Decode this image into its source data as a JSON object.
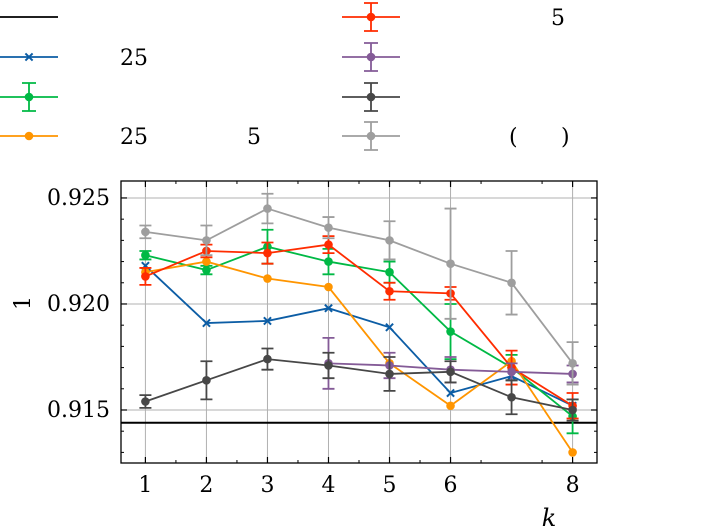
{
  "chart_data": {
    "type": "line",
    "title": "",
    "xlabel": "k",
    "ylabel": "1",
    "xlim": [
      0.6,
      8.4
    ],
    "ylim": [
      0.9125,
      0.9258
    ],
    "x_ticks": [
      1,
      2,
      3,
      4,
      5,
      6,
      8
    ],
    "x_tick_labels": [
      "1",
      "2",
      "3",
      "4",
      "5",
      "6",
      "8"
    ],
    "y_ticks": [
      0.915,
      0.92,
      0.925
    ],
    "y_tick_labels": [
      "0.915",
      "0.920",
      "0.925"
    ],
    "grid": true,
    "legend_position": "top",
    "series": [
      {
        "name": "",
        "legend_text": [],
        "color": "#000000",
        "marker": "none",
        "style": "hline",
        "x": [
          0.6,
          8.4
        ],
        "values": [
          0.9144,
          0.9144
        ],
        "errors": []
      },
      {
        "name": "25",
        "legend_text": [
          "25"
        ],
        "color": "#0C5DA5",
        "marker": "x",
        "x": [
          1,
          2,
          3,
          4,
          5,
          6,
          7,
          8
        ],
        "values": [
          0.9218,
          0.9191,
          0.9192,
          0.9198,
          0.9189,
          0.9158,
          0.9166,
          0.9152
        ],
        "errors": []
      },
      {
        "name": "",
        "legend_text": [],
        "color": "#00B945",
        "marker": "o",
        "x": [
          1,
          2,
          3,
          4,
          5,
          6,
          7,
          8
        ],
        "values": [
          0.9223,
          0.9216,
          0.9227,
          0.922,
          0.9215,
          0.9187,
          0.917,
          0.9147
        ],
        "errors": [
          0.0002,
          0.0002,
          0.0008,
          0.0006,
          0.0005,
          0.0013,
          0.0006,
          0.0008
        ]
      },
      {
        "name": "25 5",
        "legend_text": [
          "25",
          "5"
        ],
        "color": "#FF9500",
        "marker": "o",
        "x": [
          1,
          2,
          3,
          4,
          5,
          6,
          7,
          8
        ],
        "values": [
          0.9215,
          0.922,
          0.9212,
          0.9208,
          0.9172,
          0.9152,
          0.9173,
          0.913
        ],
        "errors": []
      },
      {
        "name": "5",
        "legend_text": [
          "5"
        ],
        "color": "#FF2C00",
        "marker": "o",
        "x": [
          1,
          2,
          3,
          4,
          5,
          6,
          7,
          8
        ],
        "values": [
          0.9213,
          0.9225,
          0.9224,
          0.9228,
          0.9206,
          0.9205,
          0.917,
          0.9152
        ],
        "errors": [
          0.0004,
          0.0003,
          0.0005,
          0.0004,
          0.0004,
          0.0003,
          0.0008,
          0.0006
        ]
      },
      {
        "name": "",
        "legend_text": [],
        "color": "#845B97",
        "marker": "o",
        "x": [
          4,
          5,
          6,
          7,
          8
        ],
        "values": [
          0.9172,
          0.9171,
          0.9169,
          0.9168,
          0.9167
        ],
        "errors": [
          0.0012,
          0.0006,
          0.0006,
          0.0004,
          0.0004
        ]
      },
      {
        "name": "",
        "legend_text": [],
        "color": "#474747",
        "marker": "o",
        "x": [
          1,
          2,
          3,
          4,
          5,
          6,
          7,
          8
        ],
        "values": [
          0.9154,
          0.9164,
          0.9174,
          0.9171,
          0.9167,
          0.9168,
          0.9156,
          0.915
        ],
        "errors": [
          0.0003,
          0.0009,
          0.0005,
          0.0006,
          0.0008,
          0.0005,
          0.0008,
          0.0005
        ]
      },
      {
        "name": "( )",
        "legend_text": [
          "(",
          ")"
        ],
        "color": "#9E9E9E",
        "marker": "o",
        "x": [
          1,
          2,
          3,
          4,
          5,
          6,
          7,
          8
        ],
        "values": [
          0.9234,
          0.923,
          0.9245,
          0.9236,
          0.923,
          0.9219,
          0.921,
          0.9172
        ],
        "errors": [
          0.0003,
          0.0007,
          0.0007,
          0.0005,
          0.0009,
          0.0026,
          0.0015,
          0.001
        ]
      }
    ]
  }
}
